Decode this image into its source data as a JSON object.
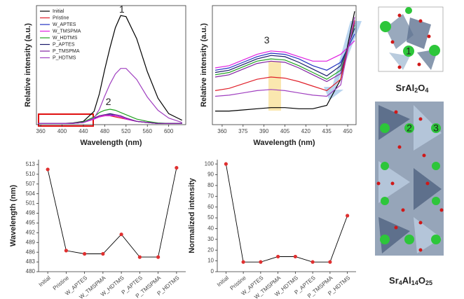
{
  "chart_data": [
    {
      "type": "line",
      "x_label": "Wavelength (nm)",
      "y_label": "Relative intensity (a.u.)",
      "x": [
        355,
        380,
        400,
        420,
        440,
        460,
        470,
        480,
        490,
        500,
        510,
        520,
        540,
        560,
        580,
        600,
        625
      ],
      "xlim": [
        352,
        632
      ],
      "ylim": [
        0,
        108
      ],
      "xticks": [
        360,
        400,
        440,
        480,
        520,
        560,
        600
      ],
      "legend": "upper left",
      "annotations": [
        "1",
        "2"
      ],
      "series": [
        {
          "name": "Initial",
          "color": "#000000",
          "values": [
            1,
            1,
            1,
            1.5,
            3,
            12,
            28,
            50,
            70,
            88,
            99,
            98,
            78,
            48,
            24,
            10,
            4
          ]
        },
        {
          "name": "Pristine",
          "color": "#e0202a",
          "values": [
            1,
            1,
            1,
            1.2,
            2,
            5,
            7,
            8,
            8,
            7,
            6,
            5,
            3,
            2,
            1,
            1,
            1
          ]
        },
        {
          "name": "W_APTES",
          "color": "#2030c0",
          "values": [
            1,
            1,
            1,
            1.2,
            2,
            5,
            8,
            9,
            9,
            8,
            7,
            5,
            3,
            2,
            1,
            1,
            1
          ]
        },
        {
          "name": "W_TMSPMA",
          "color": "#e020e0",
          "values": [
            1,
            1,
            1,
            1.2,
            2,
            5,
            7,
            8,
            8,
            8,
            7,
            5,
            3,
            2,
            1,
            1,
            1
          ]
        },
        {
          "name": "W_HDTMS",
          "color": "#20a020",
          "values": [
            1,
            1,
            1,
            1.3,
            2.5,
            7,
            11,
            13,
            14,
            13,
            11,
            9,
            5,
            3,
            1.5,
            1,
            1
          ]
        },
        {
          "name": "P_APTES",
          "color": "#1a1a6a",
          "values": [
            1,
            1,
            1,
            1.2,
            2,
            6,
            8,
            9,
            10,
            9,
            8,
            6,
            3,
            2,
            1,
            1,
            1
          ]
        },
        {
          "name": "P_TMSPMA",
          "color": "#8020a0",
          "values": [
            1,
            1,
            1,
            1.2,
            2,
            6,
            8,
            9,
            9,
            9,
            8,
            6,
            3,
            2,
            1,
            1,
            1
          ]
        },
        {
          "name": "P_HDTMS",
          "color": "#a040c0",
          "values": [
            1,
            1,
            1,
            1,
            2,
            6,
            14,
            26,
            37,
            46,
            51,
            51,
            41,
            25,
            13,
            6,
            2
          ]
        }
      ]
    },
    {
      "type": "line",
      "x_label": "Wavelength (nm)",
      "y_label": "Relative intensity (a.u.)",
      "x": [
        355,
        365,
        375,
        385,
        395,
        405,
        415,
        425,
        435,
        445,
        455
      ],
      "xlim": [
        353,
        456
      ],
      "ylim": [
        0,
        105
      ],
      "xticks": [
        360,
        375,
        390,
        405,
        420,
        435,
        450
      ],
      "annotations": [
        "3"
      ],
      "series": [
        {
          "color": "#000000",
          "values": [
            12,
            12,
            13,
            14,
            15,
            15,
            14,
            14,
            17,
            40,
            100
          ]
        },
        {
          "color": "#e020e0",
          "values": [
            50,
            52,
            57,
            62,
            65,
            64,
            60,
            56,
            56,
            62,
            74
          ]
        },
        {
          "color": "#2030c0",
          "values": [
            48,
            50,
            55,
            60,
            63,
            62,
            58,
            52,
            48,
            55,
            80
          ]
        },
        {
          "color": "#1a1a6a",
          "values": [
            46,
            48,
            53,
            58,
            61,
            60,
            55,
            49,
            43,
            52,
            85
          ]
        },
        {
          "color": "#20a020",
          "values": [
            44,
            46,
            51,
            56,
            58,
            57,
            52,
            46,
            40,
            48,
            88
          ]
        },
        {
          "color": "#8020a0",
          "values": [
            42,
            44,
            49,
            54,
            56,
            55,
            50,
            44,
            38,
            45,
            90
          ]
        },
        {
          "color": "#e0202a",
          "values": [
            30,
            32,
            36,
            40,
            42,
            41,
            38,
            34,
            30,
            40,
            92
          ]
        },
        {
          "color": "#a040c0",
          "values": [
            25,
            26,
            28,
            30,
            31,
            30,
            28,
            26,
            25,
            35,
            95
          ]
        }
      ]
    },
    {
      "type": "category-line",
      "y_label": "Wavelength (nm)",
      "categories": [
        "Initial",
        "Pristine",
        "W_APTES",
        "W_TMSPMA",
        "W_HDTMS",
        "P_APTES",
        "P_TMSPMA",
        "P_HDTMS"
      ],
      "values": [
        511.5,
        486.5,
        485.5,
        485.5,
        491.5,
        484.5,
        484.5,
        512
      ],
      "color": "#000000",
      "marker_color": "#e03030",
      "ylim": [
        480,
        514.5
      ],
      "yticks": [
        480,
        483,
        486,
        489,
        492,
        495,
        498,
        501,
        504,
        507,
        510,
        513
      ]
    },
    {
      "type": "category-line",
      "y_label": "Normalized intensity",
      "categories": [
        "Initial",
        "Pristine",
        "W_APTES",
        "W_TMSPMA",
        "W_HDTMS",
        "P_APTES",
        "P_TMSPMA",
        "P_HDTMS"
      ],
      "values": [
        100,
        9,
        9,
        14,
        14,
        9,
        9,
        52
      ],
      "color": "#000000",
      "marker_color": "#e03030",
      "ylim": [
        0,
        104
      ],
      "yticks": [
        0,
        10,
        20,
        30,
        40,
        50,
        60,
        70,
        80,
        90,
        100
      ]
    }
  ],
  "structures": [
    {
      "formula": [
        "SrAl",
        "2",
        "O",
        "4"
      ],
      "sites": [
        "1"
      ]
    },
    {
      "formula": [
        "Sr",
        "4",
        "Al",
        "14",
        "O",
        "25"
      ],
      "sites": [
        "2",
        "3"
      ]
    }
  ]
}
